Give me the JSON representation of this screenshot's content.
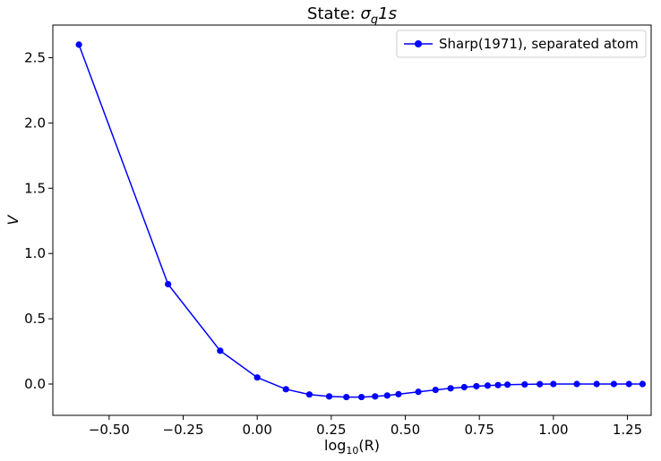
{
  "chart_data": {
    "type": "line",
    "title": "State: σg1s",
    "title_parts": {
      "prefix": "State: ",
      "symbol": "σ",
      "subscript": "g",
      "suffix": "1s"
    },
    "xlabel": "log10(R)",
    "xlabel_parts": {
      "base": "log",
      "subscript": "10",
      "suffix": "(R)"
    },
    "ylabel": "V",
    "xlim": [
      -0.69,
      1.33
    ],
    "ylim": [
      -0.24,
      2.75
    ],
    "xticks": [
      -0.5,
      -0.25,
      0.0,
      0.25,
      0.5,
      0.75,
      1.0,
      1.25
    ],
    "xtick_labels": [
      "−0.50",
      "−0.25",
      "0.00",
      "0.25",
      "0.50",
      "0.75",
      "1.00",
      "1.25"
    ],
    "yticks": [
      0.0,
      0.5,
      1.0,
      1.5,
      2.0,
      2.5
    ],
    "ytick_labels": [
      "0.0",
      "0.5",
      "1.0",
      "1.5",
      "2.0",
      "2.5"
    ],
    "grid": false,
    "legend_position": "top-right",
    "series": [
      {
        "name": "Sharp(1971), separated atom",
        "color": "#0000ff",
        "marker": "circle",
        "x": [
          -0.602,
          -0.301,
          -0.125,
          0.0,
          0.097,
          0.176,
          0.243,
          0.301,
          0.352,
          0.398,
          0.439,
          0.477,
          0.544,
          0.602,
          0.653,
          0.699,
          0.74,
          0.778,
          0.813,
          0.845,
          0.903,
          0.954,
          1.0,
          1.079,
          1.146,
          1.204,
          1.255,
          1.301
        ],
        "y": [
          2.6,
          0.765,
          0.255,
          0.05,
          -0.04,
          -0.08,
          -0.095,
          -0.1,
          -0.1,
          -0.095,
          -0.088,
          -0.078,
          -0.06,
          -0.045,
          -0.033,
          -0.024,
          -0.017,
          -0.012,
          -0.008,
          -0.005,
          -0.003,
          -0.001,
          0.0,
          0.0,
          0.0,
          0.0,
          0.0,
          0.0
        ]
      }
    ]
  }
}
